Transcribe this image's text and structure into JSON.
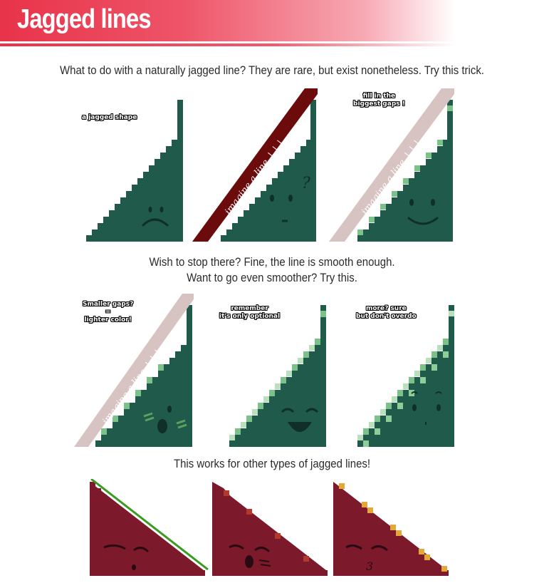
{
  "header": {
    "title": "Jagged lines"
  },
  "captions": {
    "intro": "What to do with a naturally jagged line? They are rare, but exist nonetheless. Try this trick.",
    "mid1": "Wish to stop there? Fine, the line is smooth enough.",
    "mid2": "Want to go even smoother? Try this.",
    "outro": "This works for other types of jagged lines!"
  },
  "notes": {
    "jagged_shape": "a jagged shape",
    "fill_gaps_1": "fill in the",
    "fill_gaps_2": "biggest gaps !",
    "smaller_1": "Smaller gaps?",
    "smaller_2": "=",
    "smaller_3": "lighter color!",
    "remember_1": "remember",
    "remember_2": "it's only optional",
    "more_1": "more? sure",
    "more_2": "but don't overdo"
  },
  "stripe_text": "imagine a line ↓↓↓",
  "question_mark": "?",
  "colors": {
    "green": "#1f5a4b",
    "light_green": "#7cc08a",
    "lighter_green": "#b8e0bc",
    "dark_red_stripe": "#6b0b0b",
    "pink_stripe": "#d7c4c2",
    "maroon": "#7c1a2b",
    "gold": "#e3a83a",
    "line_green": "#3a9a22"
  }
}
